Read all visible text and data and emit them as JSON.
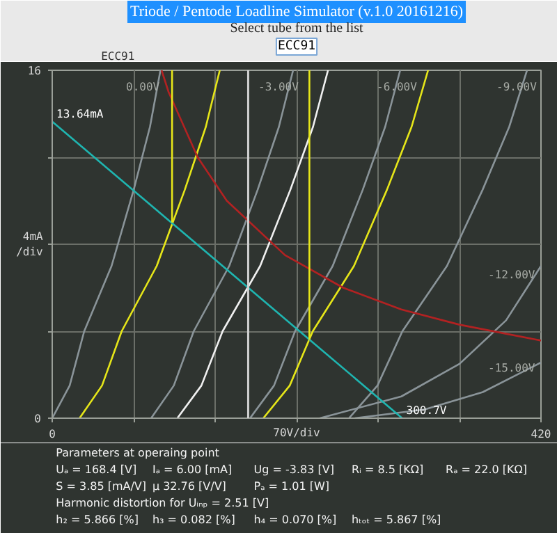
{
  "chart_data": {
    "type": "line",
    "title": "Triode / Pentode Loadline Simulator (v.1.0 20161216)",
    "subtitle": "Select tube from the list",
    "xlabel": "70V/div",
    "ylabel": "4mA\n/div",
    "xlim": [
      0,
      420
    ],
    "ylim": [
      0,
      16
    ],
    "xticks": [
      0,
      {
        "value": 70,
        "label": null
      },
      {
        "value": 140,
        "label": null
      },
      {
        "value": 210,
        "label": null
      },
      {
        "value": 280,
        "label": null
      },
      {
        "value": 350,
        "label": null
      },
      420
    ],
    "yticks": [
      0,
      {
        "value": 4,
        "label": null
      },
      {
        "value": 8,
        "label": null
      },
      {
        "value": 12,
        "label": null
      },
      16
    ],
    "grid": true,
    "line_style": "solid",
    "series": [
      {
        "color": "#8a9499",
        "x": [
          0,
          15,
          27.5,
          51,
          70,
          84,
          93
        ],
        "values": [
          0,
          1.5,
          4,
          7,
          10.5,
          13.4,
          16
        ]
      },
      {
        "color": "#e6e619",
        "x": [
          23.5,
          42.8,
          59.7,
          89.8,
          113.9,
          132,
          144
        ],
        "values": [
          0,
          1.5,
          4,
          7,
          10.5,
          13.4,
          16
        ]
      },
      {
        "color": "#8a9499",
        "x": [
          85,
          104.5,
          121.6,
          152.1,
          176.5,
          194.8,
          207
        ],
        "values": [
          0,
          1.5,
          4,
          7,
          10.5,
          13.4,
          16
        ]
      },
      {
        "color": "#f0f0f0",
        "x": [
          107.5,
          128.2,
          146.4,
          178.7,
          204.6,
          224.1,
          237
        ],
        "values": [
          0,
          1.5,
          4,
          7,
          10.5,
          13.4,
          16
        ]
      },
      {
        "color": "#8a9499",
        "x": [
          170,
          190.6,
          208.7,
          241,
          266.8,
          286.1,
          299
        ],
        "values": [
          0,
          1.5,
          4,
          7,
          10.5,
          13.4,
          16
        ]
      },
      {
        "color": "#e6e619",
        "x": [
          181.4,
          204.1,
          223.9,
          259.3,
          287.6,
          308.8,
          323
        ],
        "values": [
          0,
          1.5,
          4,
          7,
          10.5,
          13.4,
          16
        ]
      },
      {
        "color": "#8a9499",
        "x": [
          255,
          279.5,
          300.9,
          339.2,
          369.8,
          392.7,
          408
        ],
        "values": [
          0,
          1.5,
          4,
          7,
          10.5,
          13.4,
          16
        ]
      },
      {
        "color": "#8a9499",
        "x": [
          230,
          300,
          350,
          390,
          420
        ],
        "values": [
          0,
          1.0,
          2.5,
          4.5,
          7.0
        ]
      },
      {
        "color": "#8a9499",
        "x": [
          260,
          320,
          370,
          420
        ],
        "values": [
          0,
          0.4,
          1.2,
          2.56
        ]
      },
      {
        "color": "#b22222",
        "x": [
          94,
          100,
          125,
          150,
          200,
          250,
          300,
          350,
          420
        ],
        "values": [
          16,
          15,
          12,
          10,
          7.5,
          6,
          5,
          4.3,
          3.57
        ]
      },
      {
        "color": "#1fb5b0",
        "x": [
          0,
          300.7
        ],
        "values": [
          13.64,
          0
        ]
      },
      {
        "color": "#e6e619",
        "x": [
          103,
          103
        ],
        "values": [
          9.0,
          16
        ]
      },
      {
        "color": "#e6e619",
        "x": [
          221,
          221
        ],
        "values": [
          3.6,
          16
        ]
      }
    ],
    "ref_lines": [
      {
        "axis": "x",
        "value": 168.4,
        "color": "#d0d0d0"
      }
    ],
    "annotations": [
      {
        "text": "13.64mA",
        "x": 0,
        "y": 13.64
      },
      {
        "text": "300.7V",
        "x": 300.7,
        "y": 0
      },
      "0.00V",
      "-3.00V",
      "-6.00V",
      "-9.00V",
      "-12.00V",
      "-15.00V",
      "ECC91",
      "ECC91",
      "Parameters at operaing point",
      "Uₐ =  168.4 [V]",
      "Iₐ =  6.00 [mA]",
      "Ug =  -3.83 [V]",
      "Rᵢ =  8.5 [KΩ]",
      "Rₐ = 22.0 [KΩ]",
      "S =  3.85 [mA/V]",
      "μ  32.76 [V/V]",
      "Pₐ =  1.01 [W]",
      "Harmonic distortion for Uᵢₙₚ = 2.51 [V]",
      "h₂ =  5.866 [%]",
      "h₃ =  0.082 [%]",
      "h₄ =  0.070 [%]",
      "hₜₒₜ =  5.867 [%]"
    ]
  }
}
